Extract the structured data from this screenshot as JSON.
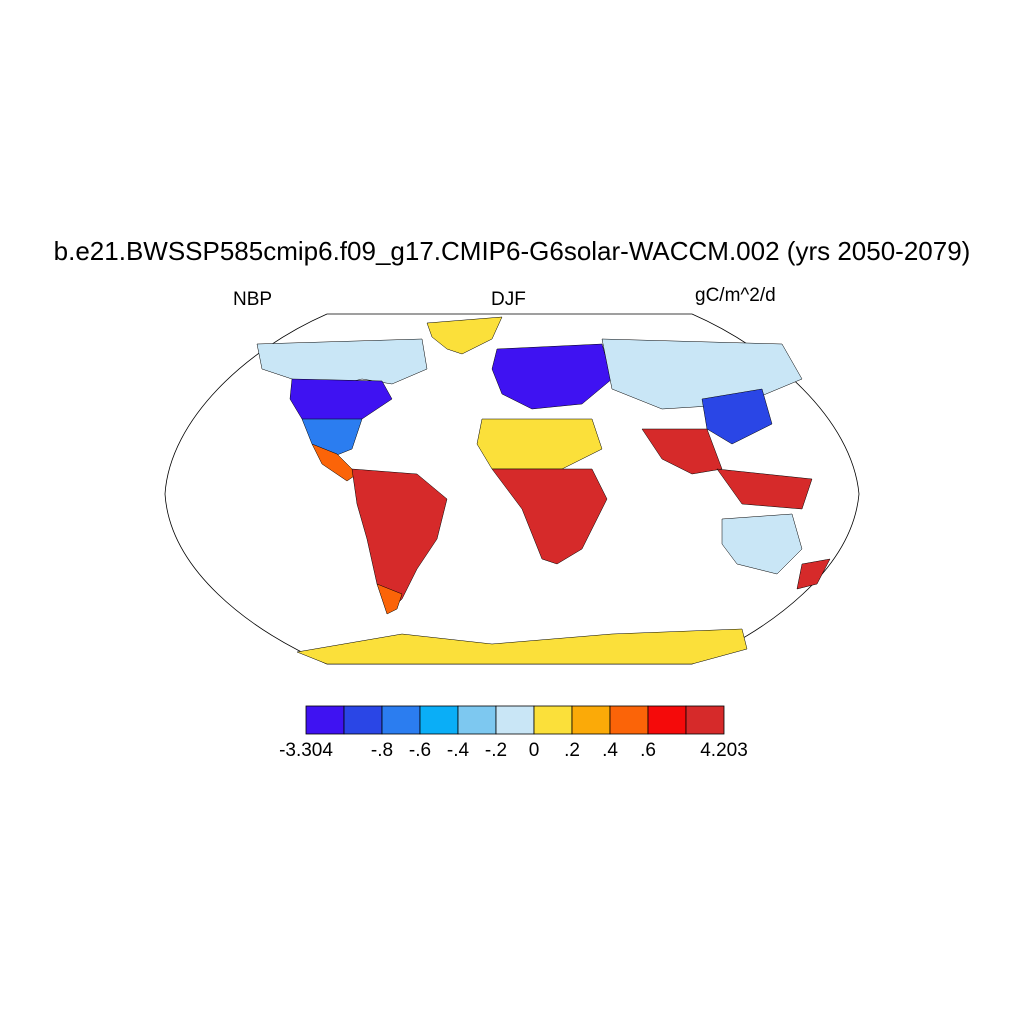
{
  "title": "b.e21.BWSSP585cmip6.f09_g17.CMIP6-G6solar-WACCM.002 (yrs 2050-2079)",
  "variable": "NBP",
  "season": "DJF",
  "units": "gC/m^2/d",
  "colorbar": {
    "colors": [
      "#3f12f2",
      "#2a46e6",
      "#2b7df0",
      "#0aaef7",
      "#7dc8f0",
      "#c9e6f6",
      "#fbe03a",
      "#fbaa08",
      "#fb6408",
      "#f50a0a",
      "#d62a2a"
    ],
    "labels": [
      "-3.304",
      "-.8",
      "-.6",
      "-.4",
      "-.2",
      "0",
      ".2",
      ".4",
      ".6",
      "4.203"
    ]
  },
  "legend_colors": {
    "ocean": "#ffffff",
    "coast": "#000000",
    "antarctica_greenland": "#fbe03a"
  }
}
